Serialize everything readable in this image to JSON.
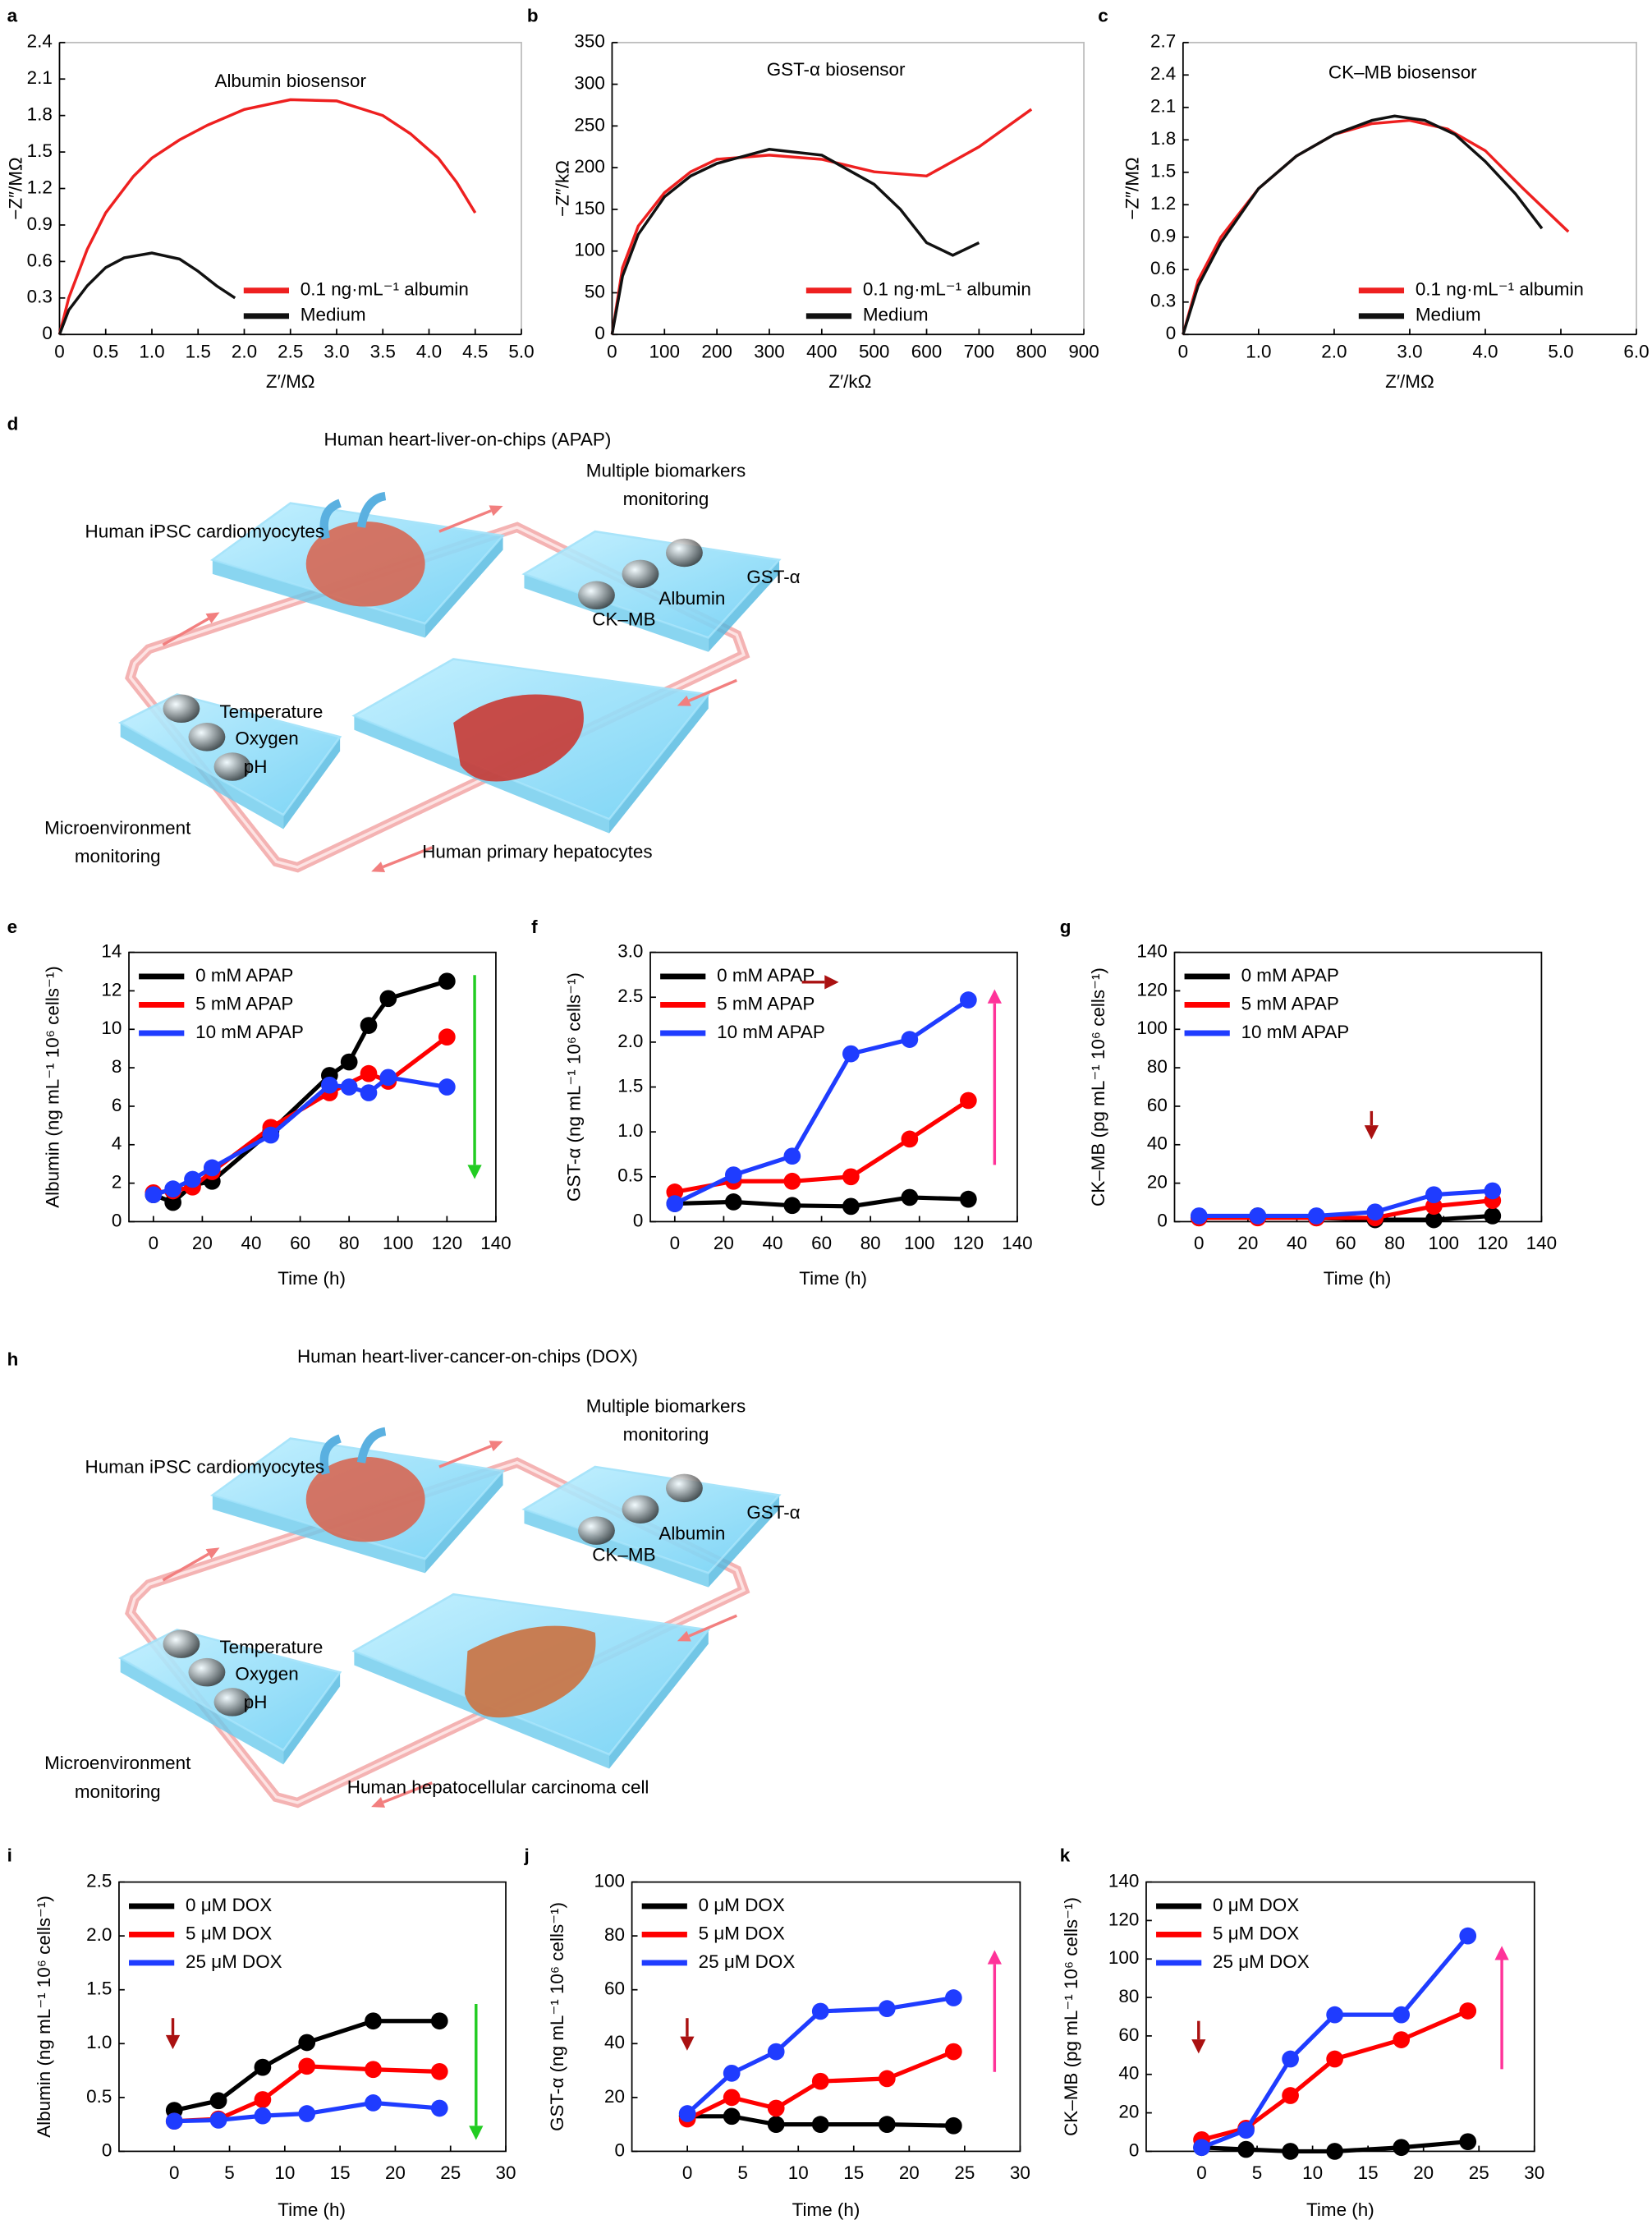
{
  "chart_data": [
    {
      "panel": "a",
      "type": "line",
      "title": "Albumin biosensor",
      "title_color": "#ee2020",
      "xlabel": "Z′/MΩ",
      "ylabel": "−Z″/MΩ",
      "xlim": [
        0,
        5
      ],
      "xticks": [
        0,
        0.5,
        {
          "value": 1,
          "label": "1.0"
        },
        1.5,
        {
          "value": 2,
          "label": "2.0"
        },
        2.5,
        {
          "value": 3,
          "label": "3.0"
        },
        3.5,
        {
          "value": 4,
          "label": "4.0"
        },
        4.5,
        {
          "value": 5,
          "label": "5.0"
        }
      ],
      "ylim": [
        0,
        2.4
      ],
      "yticks": [
        0,
        0.3,
        0.6,
        0.9,
        1.2,
        1.5,
        1.8,
        2.1,
        2.4
      ],
      "legend": "lower right",
      "markers": false,
      "series": [
        {
          "name": "0.1 ng·mL⁻¹ albumin",
          "color": "#ee2020",
          "x": [
            0,
            0.1,
            0.3,
            0.5,
            0.8,
            1.0,
            1.3,
            1.6,
            2.0,
            2.5,
            3.0,
            3.5,
            3.8,
            4.1,
            4.3,
            4.5
          ],
          "values": [
            0,
            0.3,
            0.7,
            1.0,
            1.3,
            1.45,
            1.6,
            1.72,
            1.85,
            1.93,
            1.92,
            1.8,
            1.65,
            1.45,
            1.25,
            1.0
          ]
        },
        {
          "name": "Medium",
          "color": "#111111",
          "x": [
            0,
            0.1,
            0.3,
            0.5,
            0.7,
            1.0,
            1.3,
            1.5,
            1.7,
            1.9
          ],
          "values": [
            0,
            0.2,
            0.4,
            0.55,
            0.63,
            0.67,
            0.62,
            0.52,
            0.4,
            0.3
          ]
        }
      ]
    },
    {
      "panel": "b",
      "type": "line",
      "title": "GST-α biosensor",
      "title_color": "#1a2ae0",
      "xlabel": "Z′/kΩ",
      "ylabel": "−Z″/kΩ",
      "xlim": [
        0,
        900
      ],
      "xticks": [
        0,
        100,
        200,
        300,
        400,
        500,
        600,
        700,
        800,
        900
      ],
      "ylim": [
        0,
        350
      ],
      "yticks": [
        0,
        50,
        100,
        150,
        200,
        250,
        300,
        350
      ],
      "legend": "lower right",
      "markers": false,
      "series": [
        {
          "name": "0.1 ng·mL⁻¹ albumin",
          "color": "#ee2020",
          "x": [
            0,
            20,
            50,
            100,
            150,
            200,
            300,
            400,
            500,
            600,
            700,
            800
          ],
          "values": [
            0,
            80,
            130,
            170,
            195,
            210,
            215,
            210,
            195,
            190,
            225,
            270
          ]
        },
        {
          "name": "Medium",
          "color": "#111111",
          "x": [
            0,
            20,
            50,
            100,
            150,
            200,
            300,
            400,
            500,
            550,
            600,
            650,
            700
          ],
          "values": [
            0,
            70,
            120,
            165,
            190,
            205,
            222,
            215,
            180,
            150,
            110,
            95,
            110
          ]
        }
      ]
    },
    {
      "panel": "c",
      "type": "line",
      "title": "CK–MB biosensor",
      "title_color": "#33dd33",
      "xlabel": "Z′/MΩ",
      "ylabel": "−Z″/MΩ",
      "xlim": [
        0,
        6
      ],
      "xticks": [
        0,
        {
          "value": 1,
          "label": "1.0"
        },
        {
          "value": 2,
          "label": "2.0"
        },
        {
          "value": 3,
          "label": "3.0"
        },
        {
          "value": 4,
          "label": "4.0"
        },
        {
          "value": 5,
          "label": "5.0"
        },
        {
          "value": 6,
          "label": "6.0"
        }
      ],
      "ylim": [
        0,
        2.7
      ],
      "yticks": [
        0,
        0.3,
        0.6,
        0.9,
        1.2,
        1.5,
        1.8,
        2.1,
        2.4,
        2.7
      ],
      "legend": "lower right",
      "markers": false,
      "series": [
        {
          "name": "0.1 ng·mL⁻¹ albumin",
          "color": "#ee2020",
          "x": [
            0,
            0.2,
            0.5,
            1,
            1.5,
            2,
            2.5,
            3,
            3.5,
            4,
            4.5,
            5.1
          ],
          "values": [
            0,
            0.5,
            0.9,
            1.35,
            1.65,
            1.85,
            1.95,
            1.98,
            1.9,
            1.7,
            1.35,
            0.95
          ]
        },
        {
          "name": "Medium",
          "color": "#111111",
          "x": [
            0,
            0.2,
            0.5,
            1,
            1.5,
            2,
            2.5,
            2.8,
            3.2,
            3.6,
            4,
            4.4,
            4.75
          ],
          "values": [
            0,
            0.45,
            0.85,
            1.35,
            1.65,
            1.85,
            1.98,
            2.02,
            1.98,
            1.85,
            1.6,
            1.3,
            0.98
          ]
        }
      ]
    },
    {
      "panel": "e",
      "type": "line",
      "xlabel": "Time (h)",
      "ylabel": "Albumin (ng mL⁻¹ 10⁶ cells⁻¹)",
      "xlim": [
        -10,
        140
      ],
      "xticks": [
        0,
        20,
        40,
        60,
        80,
        100,
        120,
        140
      ],
      "ylim": [
        0,
        14
      ],
      "yticks": [
        0,
        2,
        4,
        6,
        8,
        10,
        12,
        14
      ],
      "legend": "upper left",
      "markers": true,
      "series": [
        {
          "name": "0 mM APAP",
          "color": "#000000",
          "x": [
            0,
            8,
            16,
            24,
            48,
            72,
            80,
            88,
            96,
            120
          ],
          "values": [
            1.4,
            1.0,
            1.9,
            2.1,
            4.7,
            7.6,
            8.3,
            10.2,
            11.6,
            12.5
          ]
        },
        {
          "name": "5 mM APAP",
          "color": "#ff0000",
          "x": [
            0,
            8,
            16,
            24,
            48,
            72,
            88,
            96,
            120
          ],
          "values": [
            1.5,
            1.6,
            1.8,
            2.6,
            4.9,
            6.7,
            7.7,
            7.3,
            9.6
          ]
        },
        {
          "name": "10 mM APAP",
          "color": "#1f3cff",
          "x": [
            0,
            8,
            16,
            24,
            48,
            72,
            80,
            88,
            96,
            120
          ],
          "values": [
            1.4,
            1.7,
            2.2,
            2.8,
            4.5,
            7.1,
            7.0,
            6.7,
            7.5,
            7.0
          ]
        }
      ]
    },
    {
      "panel": "f",
      "type": "line",
      "xlabel": "Time (h)",
      "ylabel": "GST-α (ng mL⁻¹ 10⁶ cells⁻¹)",
      "xlim": [
        -10,
        140
      ],
      "xticks": [
        0,
        20,
        40,
        60,
        80,
        100,
        120,
        140
      ],
      "ylim": [
        0,
        3
      ],
      "yticks": [
        0,
        0.5,
        {
          "value": 1,
          "label": "1.0"
        },
        1.5,
        {
          "value": 2,
          "label": "2.0"
        },
        2.5,
        {
          "value": 3,
          "label": "3.0"
        }
      ],
      "legend": "upper left",
      "markers": true,
      "series": [
        {
          "name": "0 mM APAP",
          "color": "#000000",
          "x": [
            0,
            24,
            48,
            72,
            96,
            120
          ],
          "values": [
            0.2,
            0.22,
            0.18,
            0.17,
            0.27,
            0.25
          ]
        },
        {
          "name": "5 mM APAP",
          "color": "#ff0000",
          "x": [
            0,
            24,
            48,
            72,
            96,
            120
          ],
          "values": [
            0.33,
            0.45,
            0.45,
            0.5,
            0.92,
            1.35
          ]
        },
        {
          "name": "10 mM APAP",
          "color": "#1f3cff",
          "x": [
            0,
            24,
            48,
            72,
            96,
            120
          ],
          "values": [
            0.2,
            0.52,
            0.73,
            1.87,
            2.03,
            2.47
          ]
        }
      ]
    },
    {
      "panel": "g",
      "type": "line",
      "xlabel": "Time (h)",
      "ylabel": "CK–MB (pg mL⁻¹ 10⁶ cells⁻¹)",
      "xlim": [
        -10,
        140
      ],
      "xticks": [
        0,
        20,
        40,
        60,
        80,
        100,
        120,
        140
      ],
      "ylim": [
        0,
        140
      ],
      "yticks": [
        0,
        20,
        40,
        60,
        80,
        100,
        120,
        140
      ],
      "legend": "upper left",
      "markers": true,
      "series": [
        {
          "name": "0 mM APAP",
          "color": "#000000",
          "x": [
            0,
            24,
            48,
            72,
            96,
            120
          ],
          "values": [
            2,
            3,
            2,
            1,
            1,
            3
          ]
        },
        {
          "name": "5 mM APAP",
          "color": "#ff0000",
          "x": [
            0,
            24,
            48,
            72,
            96,
            120
          ],
          "values": [
            2,
            2,
            2,
            2,
            8,
            11
          ]
        },
        {
          "name": "10 mM APAP",
          "color": "#1f3cff",
          "x": [
            0,
            24,
            48,
            72,
            96,
            120
          ],
          "values": [
            3,
            3,
            3,
            5,
            14,
            16
          ]
        }
      ]
    },
    {
      "panel": "i",
      "type": "line",
      "xlabel": "Time (h)",
      "ylabel": "Albumin (ng mL⁻¹ 10⁶ cells⁻¹)",
      "xlim": [
        -5,
        30
      ],
      "xticks": [
        0,
        5,
        10,
        15,
        20,
        25,
        30
      ],
      "ylim": [
        0,
        2.5
      ],
      "yticks": [
        0,
        0.5,
        {
          "value": 1,
          "label": "1.0"
        },
        1.5,
        {
          "value": 2,
          "label": "2.0"
        },
        2.5
      ],
      "legend": "upper left",
      "markers": true,
      "series": [
        {
          "name": "0 μM DOX",
          "color": "#000000",
          "x": [
            0,
            4,
            8,
            12,
            18,
            24
          ],
          "values": [
            0.38,
            0.47,
            0.78,
            1.01,
            1.21,
            1.21
          ]
        },
        {
          "name": "5 μM DOX",
          "color": "#ff0000",
          "x": [
            0,
            4,
            8,
            12,
            18,
            24
          ],
          "values": [
            0.28,
            0.3,
            0.48,
            0.79,
            0.76,
            0.74
          ]
        },
        {
          "name": "25 μM DOX",
          "color": "#1f3cff",
          "x": [
            0,
            4,
            8,
            12,
            18,
            24
          ],
          "values": [
            0.28,
            0.29,
            0.33,
            0.35,
            0.45,
            0.4
          ]
        }
      ]
    },
    {
      "panel": "j",
      "type": "line",
      "xlabel": "Time (h)",
      "ylabel": "GST-α (ng mL⁻¹ 10⁶ cells⁻¹)",
      "xlim": [
        -5,
        30
      ],
      "xticks": [
        0,
        5,
        10,
        15,
        20,
        25,
        30
      ],
      "ylim": [
        0,
        100
      ],
      "yticks": [
        0,
        20,
        40,
        60,
        80,
        100
      ],
      "legend": "upper left",
      "markers": true,
      "series": [
        {
          "name": "0 μM DOX",
          "color": "#000000",
          "x": [
            0,
            4,
            8,
            12,
            18,
            24
          ],
          "values": [
            13,
            13,
            10,
            10,
            10,
            9.5
          ]
        },
        {
          "name": "5 μM DOX",
          "color": "#ff0000",
          "x": [
            0,
            4,
            8,
            12,
            18,
            24
          ],
          "values": [
            12,
            20,
            16,
            26,
            27,
            37
          ]
        },
        {
          "name": "25 μM DOX",
          "color": "#1f3cff",
          "x": [
            0,
            4,
            8,
            12,
            18,
            24
          ],
          "values": [
            14,
            29,
            37,
            52,
            53,
            57
          ]
        }
      ]
    },
    {
      "panel": "k",
      "type": "line",
      "xlabel": "Time (h)",
      "ylabel": "CK–MB (pg mL⁻¹ 10⁶ cells⁻¹)",
      "xlim": [
        -5,
        30
      ],
      "xticks": [
        0,
        5,
        10,
        15,
        20,
        25,
        30
      ],
      "ylim": [
        0,
        140
      ],
      "yticks": [
        0,
        20,
        40,
        60,
        80,
        100,
        120,
        140
      ],
      "legend": "upper left",
      "markers": true,
      "series": [
        {
          "name": "0 μM DOX",
          "color": "#000000",
          "x": [
            0,
            4,
            8,
            12,
            18,
            24
          ],
          "values": [
            2,
            1,
            0,
            0,
            2,
            5
          ]
        },
        {
          "name": "5 μM DOX",
          "color": "#ff0000",
          "x": [
            0,
            4,
            8,
            12,
            18,
            24
          ],
          "values": [
            6,
            12,
            29,
            48,
            58,
            73
          ]
        },
        {
          "name": "25 μM DOX",
          "color": "#1f3cff",
          "x": [
            0,
            4,
            8,
            12,
            18,
            24
          ],
          "values": [
            2,
            11,
            48,
            71,
            71,
            112
          ]
        }
      ]
    }
  ],
  "diagrams": [
    {
      "panel": "d",
      "title": "Human heart-liver-on-chips (APAP)",
      "title_color": "#1a2ae0",
      "labels": [
        {
          "lines": [
            "Human iPSC cardiomyocytes"
          ]
        },
        {
          "lines": [
            "Multiple biomarkers",
            "monitoring"
          ]
        },
        {
          "lines": [
            "GST-α"
          ],
          "color": "#c030c0"
        },
        {
          "lines": [
            "Albumin"
          ],
          "color": "#1a2a7a"
        },
        {
          "lines": [
            "CK–MB"
          ],
          "color": "#6a2a8a"
        },
        {
          "lines": [
            "Temperature"
          ],
          "color": "#d02020"
        },
        {
          "lines": [
            "Oxygen"
          ]
        },
        {
          "lines": [
            "pH"
          ],
          "color": "#1a3adf"
        },
        {
          "lines": [
            "Microenvironment",
            "monitoring"
          ]
        },
        {
          "lines": [
            "Human primary hepatocytes"
          ]
        }
      ]
    },
    {
      "panel": "h",
      "title": "Human heart-liver-cancer-on-chips (DOX)",
      "title_color": "#1a2ae0",
      "labels": [
        {
          "lines": [
            "Human iPSC cardiomyocytes"
          ]
        },
        {
          "lines": [
            "Multiple biomarkers",
            "monitoring"
          ]
        },
        {
          "lines": [
            "GST-α"
          ],
          "color": "#c030c0"
        },
        {
          "lines": [
            "Albumin"
          ],
          "color": "#1a2a7a"
        },
        {
          "lines": [
            "CK–MB"
          ],
          "color": "#6a2a8a"
        },
        {
          "lines": [
            "Temperature"
          ],
          "color": "#d02020"
        },
        {
          "lines": [
            "Oxygen"
          ]
        },
        {
          "lines": [
            "pH"
          ],
          "color": "#1a3adf"
        },
        {
          "lines": [
            "Microenvironment",
            "monitoring"
          ]
        },
        {
          "lines": [
            "Human hepatocellular carcinoma cell"
          ]
        }
      ]
    }
  ]
}
